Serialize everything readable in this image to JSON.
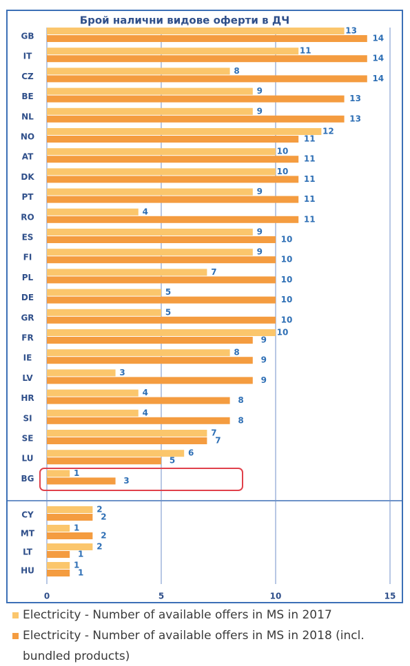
{
  "chart_data": {
    "type": "hbar",
    "title": "Брой налични видове оферти в ДЧ",
    "categories": [
      "GB",
      "IT",
      "CZ",
      "BE",
      "NL",
      "NO",
      "AT",
      "DK",
      "PT",
      "RO",
      "ES",
      "FI",
      "PL",
      "DE",
      "GR",
      "FR",
      "IE",
      "LV",
      "HR",
      "SI",
      "SE",
      "LU",
      "BG",
      "CY",
      "MT",
      "LT",
      "HU"
    ],
    "series": [
      {
        "name": "Electricity - Number of available offers in MS in 2017",
        "color": "#fbc66c",
        "values": [
          13,
          11,
          8,
          9,
          9,
          12,
          10,
          10,
          9,
          4,
          9,
          9,
          7,
          5,
          5,
          10,
          8,
          3,
          4,
          4,
          7,
          6,
          1,
          2,
          1,
          2,
          1
        ]
      },
      {
        "name": "Electricity - Number of available offers in MS in 2018 (incl. bundled products)",
        "color": "#f49c40",
        "values": [
          14,
          14,
          14,
          13,
          13,
          11,
          11,
          11,
          11,
          11,
          10,
          10,
          10,
          10,
          10,
          9,
          9,
          9,
          8,
          8,
          7,
          5,
          3,
          2,
          2,
          1,
          1
        ]
      }
    ],
    "xlim": [
      0,
      15
    ],
    "xticks": [
      0,
      5,
      10,
      15
    ],
    "grid": true
  }
}
